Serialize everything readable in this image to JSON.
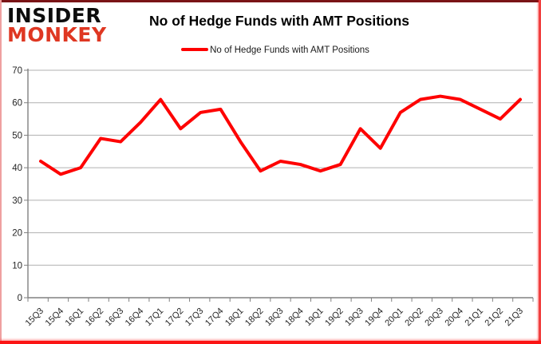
{
  "logo": {
    "line1": "INSIDER",
    "line2": "MONKEY"
  },
  "header": {
    "title": "No of Hedge Funds with AMT Positions"
  },
  "legend": {
    "label": "No of Hedge Funds with AMT Positions"
  },
  "chart_data": {
    "type": "line",
    "title": "No of Hedge Funds with AMT Positions",
    "categories": [
      "15Q3",
      "15Q4",
      "16Q1",
      "16Q2",
      "16Q3",
      "16Q4",
      "17Q1",
      "17Q2",
      "17Q3",
      "17Q4",
      "18Q1",
      "18Q2",
      "18Q3",
      "18Q4",
      "19Q1",
      "19Q2",
      "19Q3",
      "19Q4",
      "20Q1",
      "20Q2",
      "20Q3",
      "20Q4",
      "21Q1",
      "21Q2",
      "21Q3"
    ],
    "series": [
      {
        "name": "No of Hedge Funds with AMT Positions",
        "color": "#fe0000",
        "values": [
          42,
          38,
          40,
          49,
          48,
          54,
          61,
          52,
          57,
          58,
          48,
          39,
          42,
          41,
          39,
          41,
          52,
          46,
          57,
          61,
          62,
          61,
          58,
          55,
          61
        ]
      }
    ],
    "xlabel": "",
    "ylabel": "",
    "ylim": [
      0,
      70
    ],
    "yticks": [
      0,
      10,
      20,
      30,
      40,
      50,
      60,
      70
    ],
    "grid": "horizontal",
    "legend_position": "top"
  },
  "colors": {
    "line": "#fe0000",
    "gridline": "#b0b0b0",
    "axis": "#808080",
    "tick_text": "#262626",
    "logo_red": "#df3722",
    "border_red": "#fb1414"
  }
}
